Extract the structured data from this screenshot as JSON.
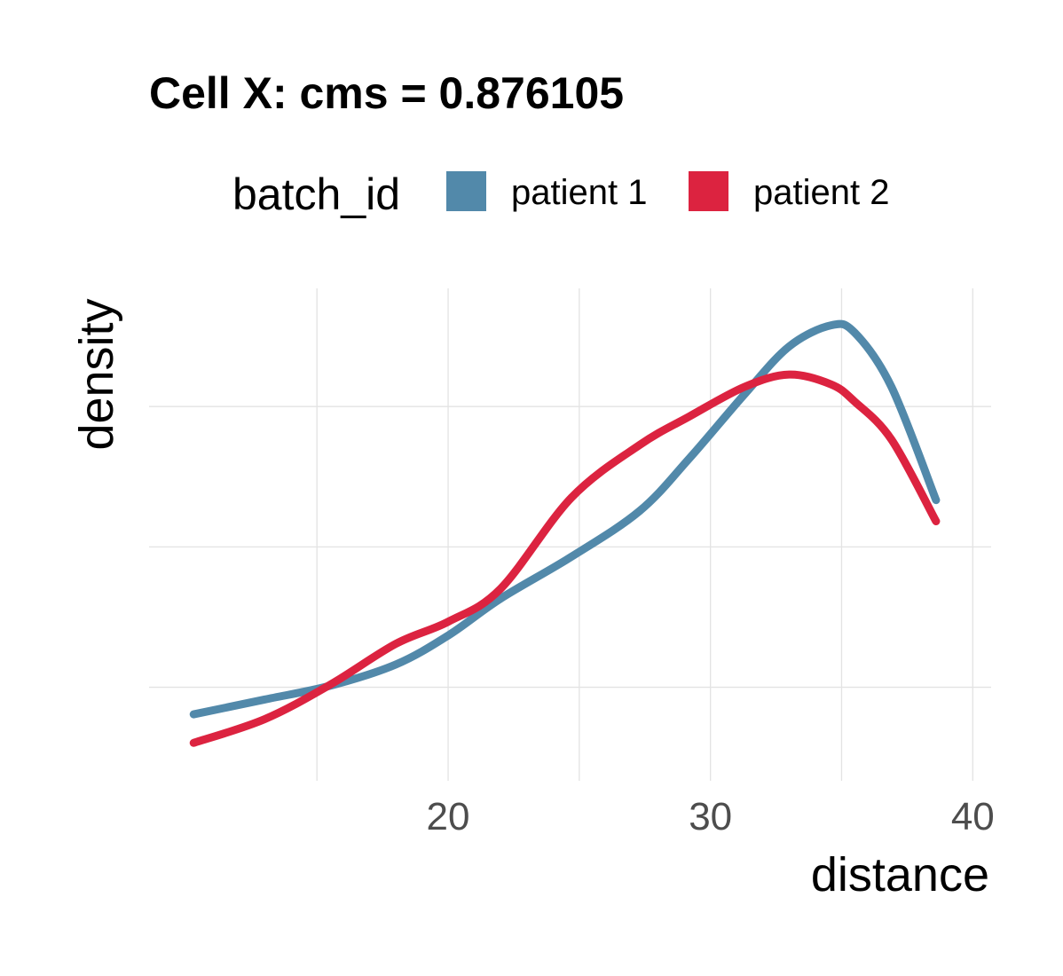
{
  "chart_data": {
    "type": "line",
    "title": "Cell X: cms = 0.876105",
    "xlabel": "distance",
    "ylabel": "density",
    "xlim": [
      8.6,
      40.7
    ],
    "ylim": [
      0,
      1
    ],
    "x_ticks": [
      20,
      30,
      40
    ],
    "x_tick_labels": [
      "20",
      "30",
      "40"
    ],
    "grid": true,
    "legend": {
      "title": "batch_id",
      "position": "top",
      "entries": [
        "patient 1",
        "patient 2"
      ]
    },
    "series": [
      {
        "name": "patient 1",
        "color": "#5289aa",
        "x": [
          10.3,
          13,
          15.5,
          18,
          20,
          22,
          24.7,
          27.3,
          29.2,
          31.3,
          33,
          34.6,
          35.5,
          36.9,
          38.6
        ],
        "y": [
          0.135,
          0.165,
          0.193,
          0.236,
          0.295,
          0.37,
          0.455,
          0.548,
          0.655,
          0.785,
          0.882,
          0.925,
          0.91,
          0.8,
          0.57
        ]
      },
      {
        "name": "patient 2",
        "color": "#dc2340",
        "x": [
          10.3,
          13,
          15.5,
          18,
          20,
          22,
          24.7,
          27.3,
          29.2,
          31.3,
          33,
          34.6,
          35.5,
          36.9,
          38.6
        ],
        "y": [
          0.077,
          0.125,
          0.195,
          0.278,
          0.323,
          0.39,
          0.575,
          0.682,
          0.74,
          0.8,
          0.825,
          0.805,
          0.77,
          0.693,
          0.527
        ]
      }
    ]
  }
}
